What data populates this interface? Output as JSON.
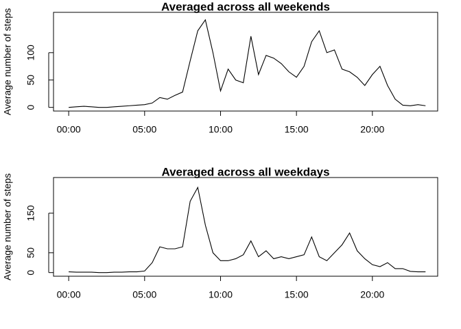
{
  "chart_data": [
    {
      "type": "line",
      "title": "Averaged across all weekends",
      "ylabel": "Average number of steps",
      "color": "#000000",
      "x": [
        0,
        0.5,
        1,
        1.5,
        2,
        2.5,
        3,
        3.5,
        4,
        4.5,
        5,
        5.5,
        6,
        6.5,
        7,
        7.5,
        8,
        8.5,
        9,
        9.5,
        10,
        10.5,
        11,
        11.5,
        12,
        12.5,
        13,
        13.5,
        14,
        14.5,
        15,
        15.5,
        16,
        16.5,
        17,
        17.5,
        18,
        18.5,
        19,
        19.5,
        20,
        20.5,
        21,
        21.5,
        22,
        22.5,
        23,
        23.5
      ],
      "values": [
        0,
        1,
        2,
        1,
        0,
        0,
        1,
        2,
        3,
        4,
        5,
        8,
        18,
        15,
        22,
        28,
        85,
        140,
        160,
        100,
        30,
        70,
        50,
        45,
        130,
        60,
        95,
        90,
        80,
        65,
        55,
        75,
        120,
        140,
        100,
        105,
        70,
        65,
        55,
        40,
        60,
        75,
        40,
        15,
        4,
        3,
        5,
        3
      ],
      "xlim": [
        -1,
        24.3
      ],
      "xticks": [
        {
          "value": 0,
          "label": "00:00"
        },
        {
          "value": 5,
          "label": "05:00"
        },
        {
          "value": 10,
          "label": "10:00"
        },
        {
          "value": 15,
          "label": "15:00"
        },
        {
          "value": 20,
          "label": "20:00"
        }
      ],
      "ylim": [
        -6.7,
        173.7
      ],
      "yticks": [
        0,
        50,
        100
      ]
    },
    {
      "type": "line",
      "title": "Averaged across all weekdays",
      "ylabel": "Average number of steps",
      "color": "#000000",
      "x": [
        0,
        0.5,
        1,
        1.5,
        2,
        2.5,
        3,
        3.5,
        4,
        4.5,
        5,
        5.5,
        6,
        6.5,
        7,
        7.5,
        8,
        8.5,
        9,
        9.5,
        10,
        10.5,
        11,
        11.5,
        12,
        12.5,
        13,
        13.5,
        14,
        14.5,
        15,
        15.5,
        16,
        16.5,
        17,
        17.5,
        18,
        18.5,
        19,
        19.5,
        20,
        20.5,
        21,
        21.5,
        22,
        22.5,
        23,
        23.5
      ],
      "values": [
        2,
        1,
        1,
        1,
        0,
        0,
        1,
        1,
        2,
        2,
        4,
        25,
        65,
        60,
        60,
        65,
        180,
        215,
        120,
        50,
        30,
        30,
        35,
        45,
        80,
        40,
        55,
        35,
        40,
        35,
        40,
        45,
        90,
        40,
        30,
        50,
        70,
        100,
        55,
        35,
        20,
        15,
        25,
        10,
        10,
        3,
        2,
        2
      ],
      "xlim": [
        -1,
        24.3
      ],
      "xticks": [
        {
          "value": 0,
          "label": "00:00"
        },
        {
          "value": 5,
          "label": "05:00"
        },
        {
          "value": 10,
          "label": "10:00"
        },
        {
          "value": 15,
          "label": "15:00"
        },
        {
          "value": 20,
          "label": "20:00"
        }
      ],
      "ylim": [
        -9.2,
        240
      ],
      "yticks": [
        0,
        50,
        150
      ]
    }
  ]
}
